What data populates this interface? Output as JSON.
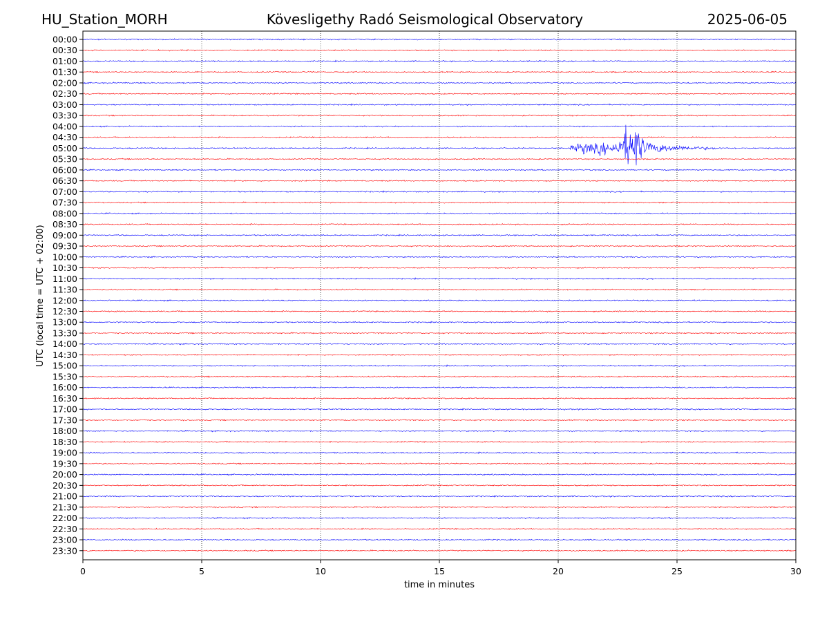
{
  "header": {
    "station": "HU_Station_MORH",
    "observatory": "Kövesligethy Radó Seismological Observatory",
    "date": "2025-06-05"
  },
  "colors": {
    "even_trace": "#0000ff",
    "odd_trace": "#ff0000",
    "grid": "#000000",
    "axes": "#000000"
  },
  "chart_data": {
    "type": "line",
    "title": "Kövesligethy Radó Seismological Observatory",
    "xlabel": "time in minutes",
    "ylabel": "UTC (local time = UTC + 02:00)",
    "xlim": [
      0,
      30
    ],
    "x_ticks": [
      0,
      5,
      10,
      15,
      20,
      25,
      30
    ],
    "grid": "vertical dotted at x ticks",
    "trace_labels": [
      "00:00",
      "00:30",
      "01:00",
      "01:30",
      "02:00",
      "02:30",
      "03:00",
      "03:30",
      "04:00",
      "04:30",
      "05:00",
      "05:30",
      "06:00",
      "06:30",
      "07:00",
      "07:30",
      "08:00",
      "08:30",
      "09:00",
      "09:30",
      "10:00",
      "10:30",
      "11:00",
      "11:30",
      "12:00",
      "12:30",
      "13:00",
      "13:30",
      "14:00",
      "14:30",
      "15:00",
      "15:30",
      "16:00",
      "16:30",
      "17:00",
      "17:30",
      "18:00",
      "18:30",
      "19:00",
      "19:30",
      "20:00",
      "20:30",
      "21:00",
      "21:30",
      "22:00",
      "22:30",
      "23:00",
      "23:30"
    ],
    "trace_color_pattern": "alternating blue/red, starting blue",
    "event": {
      "trace": "05:00",
      "start_min": 20.5,
      "peak_min": 23.1,
      "end_min": 27.5,
      "description": "earthquake signal"
    }
  }
}
